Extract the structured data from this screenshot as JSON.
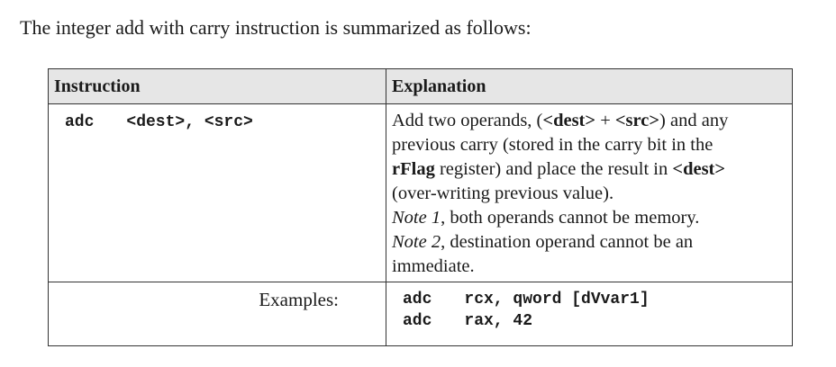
{
  "intro_text": "The integer add with carry instruction is summarized as follows:",
  "table": {
    "headers": {
      "instruction": "Instruction",
      "explanation": "Explanation"
    },
    "instruction": {
      "mnemonic": "adc",
      "operands": "<dest>, <src>"
    },
    "explanation": {
      "l1_a": "Add two operands, (",
      "l1_dest": "<dest>",
      "l1_b": " + ",
      "l1_src": "<src>",
      "l1_c": ") and any",
      "l2": "previous carry (stored in the carry bit in the",
      "l3_rflag": "rFlag",
      "l3_a": " register) and place the result in ",
      "l3_dest": "<dest>",
      "l4": "(over-writing previous value).",
      "note1_label": "Note 1",
      "note1_text": ", both operands cannot be memory.",
      "note2_label": "Note 2",
      "note2_text": ", destination operand cannot be an",
      "l7": "immediate."
    },
    "examples_label": "Examples:",
    "examples": [
      {
        "mnemonic": "adc",
        "args": "rcx, qword [dVvar1]"
      },
      {
        "mnemonic": "adc",
        "args": "rax, 42"
      }
    ]
  }
}
